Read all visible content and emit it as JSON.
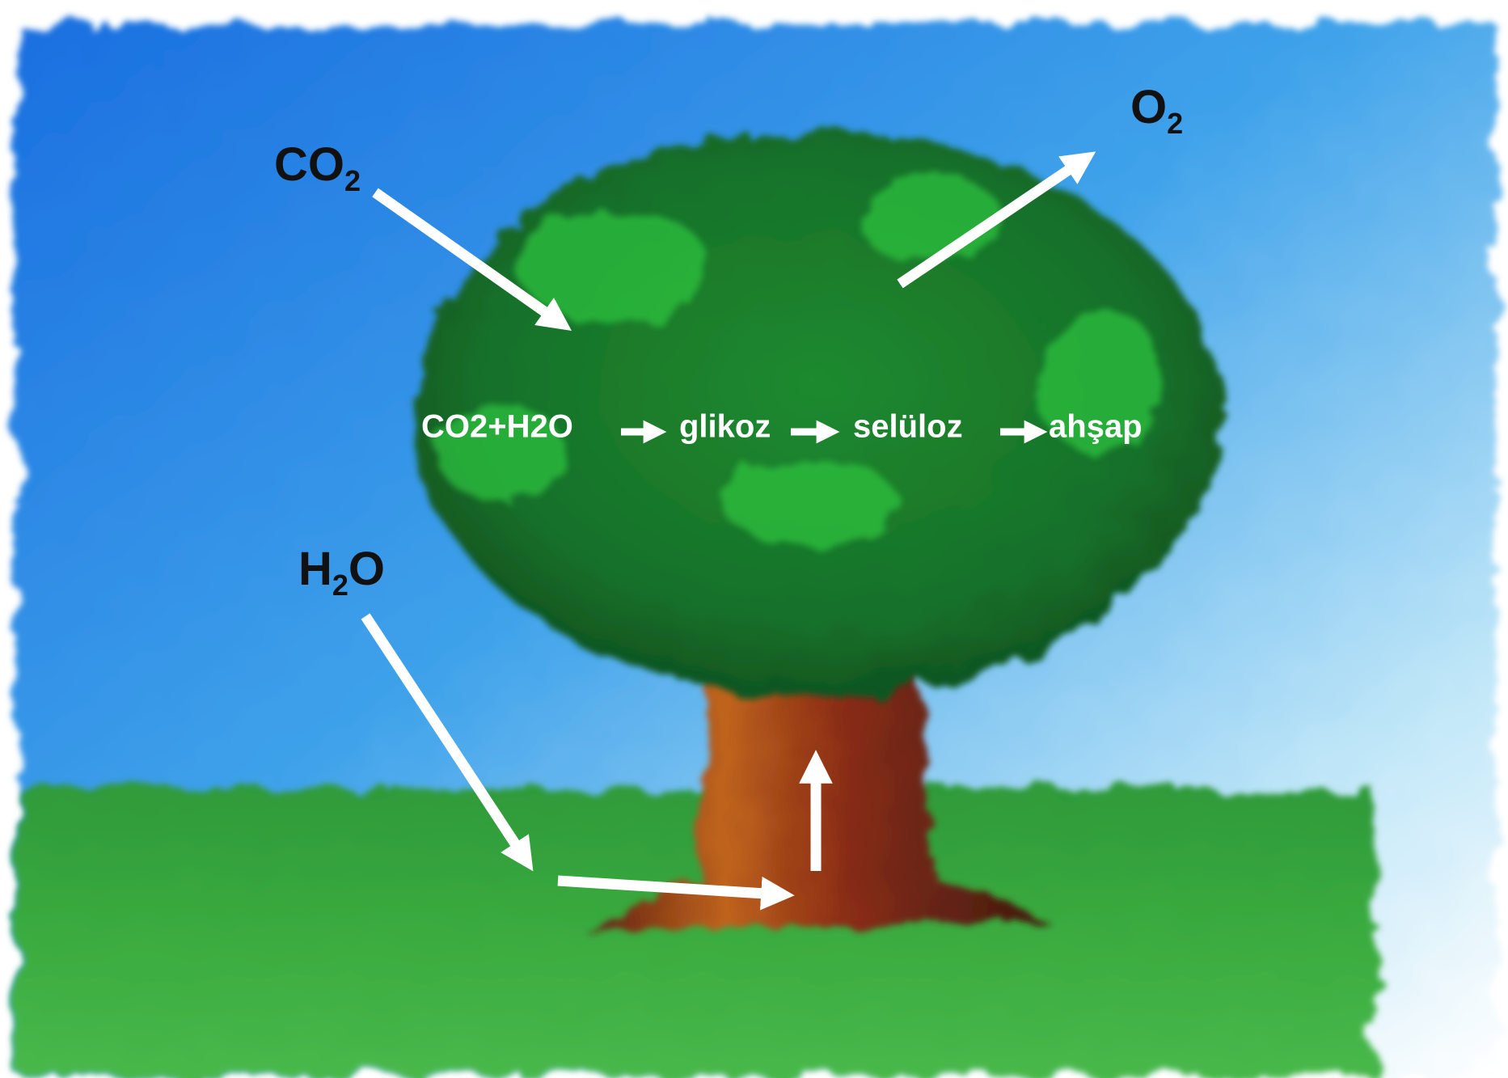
{
  "labels": {
    "co2": {
      "base": "CO",
      "sub": "2"
    },
    "o2": {
      "base": "O",
      "sub": "2"
    },
    "h2o": {
      "base": "H",
      "sub": "2",
      "tail": "O"
    }
  },
  "chain": [
    "CO2+H2O",
    "glikoz",
    "selüloz",
    "ahşap"
  ]
}
